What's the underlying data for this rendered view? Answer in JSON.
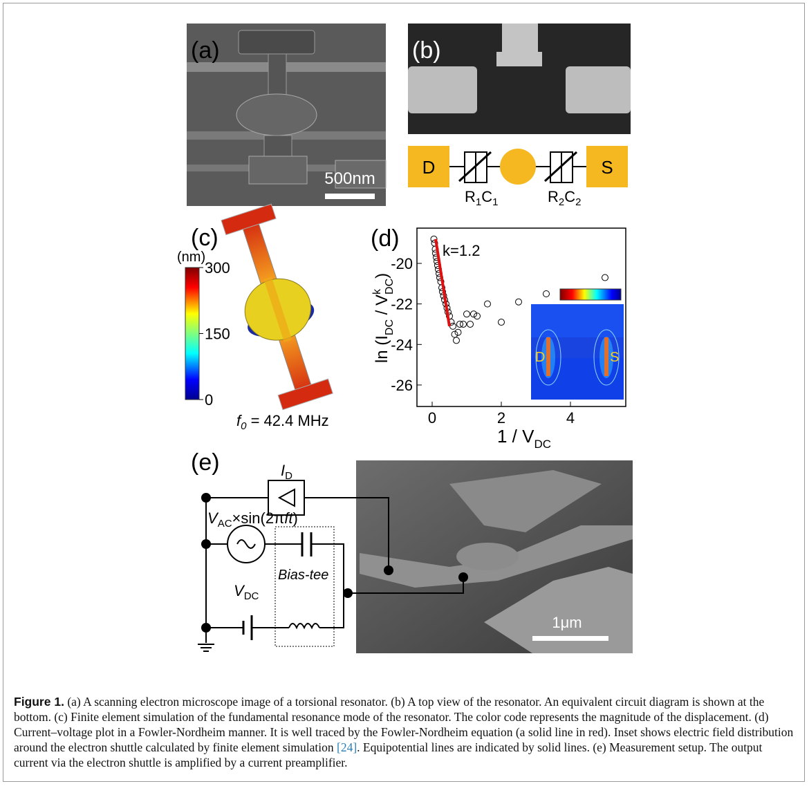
{
  "panel_a": {
    "label": "(a)",
    "scale_bar": "500nm"
  },
  "panel_b": {
    "label": "(b)",
    "drain": "D",
    "source": "S",
    "r1c1": [
      "R",
      "1",
      "C",
      "1"
    ],
    "r2c2": [
      "R",
      "2",
      "C",
      "2"
    ]
  },
  "panel_c": {
    "label": "(c)",
    "unit": "(nm)",
    "colorbar_ticks": [
      300,
      150,
      0
    ],
    "frequency": [
      "f",
      "0",
      " = 42.4 MHz"
    ]
  },
  "chart_data": {
    "type": "scatter",
    "label": "(d)",
    "annotation": "k=1.2",
    "x_label": [
      "1 / V",
      "DC"
    ],
    "y_label": [
      "ln (I",
      "DC",
      " / V",
      "k",
      "DC",
      ")"
    ],
    "x": [
      0.05,
      0.07,
      0.09,
      0.1,
      0.12,
      0.14,
      0.16,
      0.18,
      0.2,
      0.22,
      0.25,
      0.28,
      0.3,
      0.33,
      0.36,
      0.4,
      0.43,
      0.46,
      0.5,
      0.55,
      0.6,
      0.65,
      0.7,
      0.75,
      0.8,
      0.9,
      1.0,
      1.1,
      1.2,
      1.3,
      1.6,
      2.0,
      2.5,
      3.3,
      5.0
    ],
    "values": [
      -18.8,
      -19.0,
      -19.3,
      -19.5,
      -19.7,
      -19.9,
      -20.1,
      -20.3,
      -20.5,
      -20.7,
      -20.9,
      -21.2,
      -21.4,
      -21.6,
      -21.8,
      -22.0,
      -22.2,
      -22.4,
      -22.6,
      -22.9,
      -23.1,
      -23.5,
      -23.8,
      -23.4,
      -23.0,
      -23.0,
      -22.5,
      -23.0,
      -22.5,
      -22.6,
      -22.0,
      -22.9,
      -21.9,
      -21.5,
      -20.7
    ],
    "fit": {
      "color": "#e01010",
      "x": [
        0.1,
        0.5
      ],
      "values": [
        -18.8,
        -23.1
      ]
    },
    "xlim": [
      -0.44,
      5.6
    ],
    "ylim": [
      -27.06,
      -18.26
    ],
    "xticks": [
      0,
      2,
      4
    ],
    "yticks": [
      -20,
      -22,
      -24,
      -26
    ],
    "inset_labels": [
      "D",
      "S"
    ]
  },
  "panel_e": {
    "label": "(e)",
    "current": [
      "I",
      "D"
    ],
    "ac": [
      "V",
      "AC",
      "×sin(2π",
      "ft",
      ")"
    ],
    "bias_tee": "Bias-tee",
    "dc": [
      "V",
      "DC"
    ],
    "scale_bar": "1μm"
  },
  "caption": {
    "label": "Figure 1.",
    "text": " (a) A scanning electron microscope image of a torsional resonator. (b) A top view of the resonator. An equivalent circuit diagram is shown at the bottom. (c) Finite element simulation of the fundamental resonance mode of the resonator. The color code represents the magnitude of the displacement. (d) Current–voltage plot in a Fowler-Nordheim manner. It is well traced by the Fowler-Nordheim equation (a solid line in red). Inset shows electric field distribution around the electron shuttle calculated by finite element simulation ",
    "ref": "[24]",
    "text2": ". Equipotential lines are indicated by solid lines. (e) Measurement setup. The output current via the electron shuttle is amplified by a current preamplifier."
  }
}
